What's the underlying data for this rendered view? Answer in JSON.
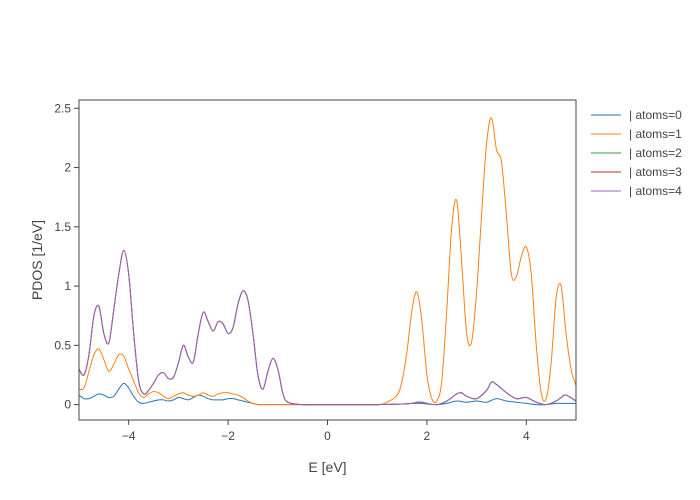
{
  "chart_data": {
    "type": "line",
    "title": "",
    "xlabel": "E [eV]",
    "ylabel": "PDOS [1/eV]",
    "xlim": [
      -5,
      5
    ],
    "ylim": [
      -0.13,
      2.57
    ],
    "xticks": [
      -4,
      -2,
      0,
      2,
      4
    ],
    "xtick_labels": [
      "−4",
      "−2",
      "0",
      "2",
      "4"
    ],
    "yticks": [
      0,
      0.5,
      1,
      1.5,
      2,
      2.5
    ],
    "ytick_labels": [
      "0",
      "0.5",
      "1",
      "1.5",
      "2",
      "2.5"
    ],
    "grid": false,
    "legend_position": "right",
    "series": [
      {
        "name": "| atoms=0",
        "color": "#1f77b4",
        "x": [
          -5.0,
          -4.9,
          -4.8,
          -4.7,
          -4.6,
          -4.5,
          -4.4,
          -4.3,
          -4.2,
          -4.1,
          -4.0,
          -3.9,
          -3.8,
          -3.7,
          -3.6,
          -3.5,
          -3.4,
          -3.3,
          -3.2,
          -3.1,
          -3.0,
          -2.9,
          -2.8,
          -2.7,
          -2.6,
          -2.5,
          -2.4,
          -2.3,
          -2.2,
          -2.1,
          -2.0,
          -1.9,
          -1.8,
          -1.7,
          -1.6,
          -1.5,
          -1.4,
          -1.3,
          -1.2,
          -1.1,
          -1.0,
          -0.9,
          -0.8,
          -0.5,
          0.0,
          0.5,
          1.0,
          1.5,
          1.7,
          1.8,
          1.9,
          2.0,
          2.2,
          2.4,
          2.6,
          2.8,
          3.0,
          3.2,
          3.4,
          3.6,
          3.8,
          4.0,
          4.2,
          4.4,
          4.6,
          4.8,
          5.0
        ],
        "y": [
          0.08,
          0.05,
          0.05,
          0.07,
          0.09,
          0.08,
          0.06,
          0.07,
          0.13,
          0.18,
          0.14,
          0.07,
          0.02,
          0.01,
          0.02,
          0.03,
          0.04,
          0.04,
          0.03,
          0.04,
          0.06,
          0.05,
          0.04,
          0.06,
          0.08,
          0.07,
          0.05,
          0.04,
          0.04,
          0.04,
          0.05,
          0.05,
          0.04,
          0.03,
          0.02,
          0.01,
          0.0,
          0.0,
          0.0,
          0.0,
          0.0,
          0.0,
          0.0,
          0.0,
          0.0,
          0.0,
          0.0,
          0.005,
          0.01,
          0.01,
          0.01,
          0.005,
          0.0,
          0.01,
          0.03,
          0.02,
          0.03,
          0.02,
          0.05,
          0.03,
          0.02,
          0.01,
          0.0,
          0.0,
          0.01,
          0.01,
          0.01
        ]
      },
      {
        "name": "| atoms=1",
        "color": "#ff7f0e",
        "x": [
          -5.0,
          -4.9,
          -4.8,
          -4.7,
          -4.6,
          -4.5,
          -4.4,
          -4.3,
          -4.2,
          -4.1,
          -4.0,
          -3.9,
          -3.8,
          -3.7,
          -3.6,
          -3.5,
          -3.4,
          -3.3,
          -3.2,
          -3.1,
          -3.0,
          -2.9,
          -2.8,
          -2.7,
          -2.6,
          -2.5,
          -2.4,
          -2.3,
          -2.2,
          -2.1,
          -2.0,
          -1.9,
          -1.8,
          -1.7,
          -1.6,
          -1.5,
          -1.4,
          -1.3,
          -1.2,
          -1.1,
          -1.0,
          -0.5,
          0.0,
          0.5,
          1.0,
          1.2,
          1.4,
          1.5,
          1.6,
          1.7,
          1.8,
          1.9,
          2.0,
          2.1,
          2.2,
          2.3,
          2.4,
          2.5,
          2.6,
          2.7,
          2.8,
          2.9,
          3.0,
          3.1,
          3.2,
          3.3,
          3.4,
          3.5,
          3.6,
          3.7,
          3.8,
          3.9,
          4.0,
          4.1,
          4.2,
          4.3,
          4.4,
          4.5,
          4.6,
          4.7,
          4.8,
          4.9,
          5.0
        ],
        "y": [
          0.13,
          0.14,
          0.28,
          0.42,
          0.47,
          0.38,
          0.28,
          0.34,
          0.42,
          0.41,
          0.3,
          0.2,
          0.1,
          0.06,
          0.09,
          0.11,
          0.1,
          0.07,
          0.05,
          0.07,
          0.09,
          0.1,
          0.08,
          0.07,
          0.08,
          0.1,
          0.08,
          0.07,
          0.09,
          0.1,
          0.1,
          0.09,
          0.08,
          0.06,
          0.03,
          0.01,
          0.0,
          0.0,
          0.0,
          0.0,
          0.0,
          0.0,
          0.0,
          0.0,
          0.0,
          0.02,
          0.08,
          0.2,
          0.45,
          0.8,
          0.95,
          0.7,
          0.25,
          0.05,
          0.03,
          0.2,
          0.8,
          1.5,
          1.72,
          1.2,
          0.6,
          0.53,
          0.95,
          1.6,
          2.2,
          2.42,
          2.15,
          2.05,
          1.6,
          1.1,
          1.08,
          1.25,
          1.33,
          1.1,
          0.5,
          0.1,
          0.05,
          0.35,
          0.9,
          1.0,
          0.6,
          0.3,
          0.16
        ]
      },
      {
        "name": "| atoms=2",
        "color": "#2ca02c",
        "x": [
          -5.0,
          -4.9,
          -4.8,
          -4.7,
          -4.6,
          -4.5,
          -4.4,
          -4.3,
          -4.2,
          -4.1,
          -4.0,
          -3.9,
          -3.8,
          -3.7,
          -3.6,
          -3.5,
          -3.4,
          -3.3,
          -3.2,
          -3.1,
          -3.0,
          -2.9,
          -2.8,
          -2.7,
          -2.6,
          -2.5,
          -2.4,
          -2.3,
          -2.2,
          -2.1,
          -2.0,
          -1.9,
          -1.8,
          -1.7,
          -1.6,
          -1.5,
          -1.4,
          -1.3,
          -1.2,
          -1.1,
          -1.0,
          -0.9,
          -0.8,
          -0.5,
          0.0,
          0.5,
          1.0,
          1.5,
          1.7,
          1.8,
          1.9,
          2.0,
          2.2,
          2.4,
          2.6,
          2.7,
          2.8,
          3.0,
          3.2,
          3.3,
          3.4,
          3.6,
          3.8,
          4.0,
          4.2,
          4.4,
          4.6,
          4.7,
          4.8,
          5.0
        ],
        "y": [
          0.3,
          0.25,
          0.42,
          0.75,
          0.83,
          0.6,
          0.52,
          0.8,
          1.1,
          1.3,
          1.1,
          0.6,
          0.2,
          0.09,
          0.12,
          0.18,
          0.25,
          0.27,
          0.22,
          0.23,
          0.35,
          0.5,
          0.4,
          0.36,
          0.6,
          0.78,
          0.7,
          0.62,
          0.7,
          0.68,
          0.6,
          0.65,
          0.85,
          0.96,
          0.88,
          0.6,
          0.25,
          0.13,
          0.28,
          0.39,
          0.3,
          0.1,
          0.02,
          0.0,
          0.0,
          0.0,
          0.0,
          0.005,
          0.01,
          0.02,
          0.02,
          0.01,
          0.0,
          0.03,
          0.09,
          0.1,
          0.07,
          0.05,
          0.12,
          0.19,
          0.17,
          0.1,
          0.05,
          0.06,
          0.02,
          0.0,
          0.03,
          0.06,
          0.08,
          0.03
        ]
      },
      {
        "name": "| atoms=3",
        "color": "#d62728",
        "x": [
          -5.0,
          -4.9,
          -4.8,
          -4.7,
          -4.6,
          -4.5,
          -4.4,
          -4.3,
          -4.2,
          -4.1,
          -4.0,
          -3.9,
          -3.8,
          -3.7,
          -3.6,
          -3.5,
          -3.4,
          -3.3,
          -3.2,
          -3.1,
          -3.0,
          -2.9,
          -2.8,
          -2.7,
          -2.6,
          -2.5,
          -2.4,
          -2.3,
          -2.2,
          -2.1,
          -2.0,
          -1.9,
          -1.8,
          -1.7,
          -1.6,
          -1.5,
          -1.4,
          -1.3,
          -1.2,
          -1.1,
          -1.0,
          -0.9,
          -0.8,
          -0.5,
          0.0,
          0.5,
          1.0,
          1.5,
          1.7,
          1.8,
          1.9,
          2.0,
          2.2,
          2.4,
          2.6,
          2.7,
          2.8,
          3.0,
          3.2,
          3.3,
          3.4,
          3.6,
          3.8,
          4.0,
          4.2,
          4.4,
          4.6,
          4.7,
          4.8,
          5.0
        ],
        "y": [
          0.3,
          0.25,
          0.42,
          0.75,
          0.83,
          0.6,
          0.52,
          0.8,
          1.1,
          1.3,
          1.1,
          0.6,
          0.2,
          0.09,
          0.12,
          0.18,
          0.25,
          0.27,
          0.22,
          0.23,
          0.35,
          0.5,
          0.4,
          0.36,
          0.6,
          0.78,
          0.7,
          0.62,
          0.7,
          0.68,
          0.6,
          0.65,
          0.85,
          0.96,
          0.88,
          0.6,
          0.25,
          0.13,
          0.28,
          0.39,
          0.3,
          0.1,
          0.02,
          0.0,
          0.0,
          0.0,
          0.0,
          0.005,
          0.01,
          0.02,
          0.02,
          0.01,
          0.0,
          0.03,
          0.09,
          0.1,
          0.07,
          0.05,
          0.12,
          0.19,
          0.17,
          0.1,
          0.05,
          0.06,
          0.02,
          0.0,
          0.03,
          0.06,
          0.08,
          0.03
        ]
      },
      {
        "name": "| atoms=4",
        "color": "#9467bd",
        "x": [
          -5.0,
          -4.9,
          -4.8,
          -4.7,
          -4.6,
          -4.5,
          -4.4,
          -4.3,
          -4.2,
          -4.1,
          -4.0,
          -3.9,
          -3.8,
          -3.7,
          -3.6,
          -3.5,
          -3.4,
          -3.3,
          -3.2,
          -3.1,
          -3.0,
          -2.9,
          -2.8,
          -2.7,
          -2.6,
          -2.5,
          -2.4,
          -2.3,
          -2.2,
          -2.1,
          -2.0,
          -1.9,
          -1.8,
          -1.7,
          -1.6,
          -1.5,
          -1.4,
          -1.3,
          -1.2,
          -1.1,
          -1.0,
          -0.9,
          -0.8,
          -0.5,
          0.0,
          0.5,
          1.0,
          1.5,
          1.7,
          1.8,
          1.9,
          2.0,
          2.2,
          2.4,
          2.6,
          2.7,
          2.8,
          3.0,
          3.2,
          3.3,
          3.4,
          3.6,
          3.8,
          4.0,
          4.2,
          4.4,
          4.6,
          4.7,
          4.8,
          5.0
        ],
        "y": [
          0.3,
          0.25,
          0.42,
          0.75,
          0.83,
          0.6,
          0.52,
          0.8,
          1.1,
          1.3,
          1.1,
          0.6,
          0.2,
          0.09,
          0.12,
          0.18,
          0.25,
          0.27,
          0.22,
          0.23,
          0.35,
          0.5,
          0.4,
          0.36,
          0.6,
          0.78,
          0.7,
          0.62,
          0.7,
          0.68,
          0.6,
          0.65,
          0.85,
          0.96,
          0.88,
          0.6,
          0.25,
          0.13,
          0.28,
          0.39,
          0.3,
          0.1,
          0.02,
          0.0,
          0.0,
          0.0,
          0.0,
          0.005,
          0.01,
          0.02,
          0.02,
          0.01,
          0.0,
          0.03,
          0.09,
          0.1,
          0.07,
          0.05,
          0.12,
          0.19,
          0.17,
          0.1,
          0.05,
          0.06,
          0.02,
          0.0,
          0.03,
          0.06,
          0.08,
          0.03
        ]
      }
    ]
  }
}
